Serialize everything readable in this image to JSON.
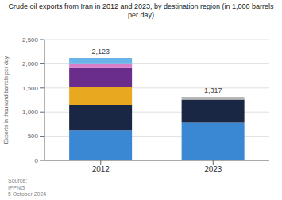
{
  "chart_data": {
    "type": "bar",
    "stacked": true,
    "title": "Crude oil exports from Iran in 2012 and 2023, by destination region (in 1,000 barrels\nper day)",
    "categories": [
      "2012",
      "2023"
    ],
    "series": [
      {
        "colors": [
          "#3a87d4",
          "#3a87d4"
        ],
        "values": [
          620,
          780
        ]
      },
      {
        "colors": [
          "#1a2744",
          "#1a2744"
        ],
        "values": [
          530,
          480
        ]
      },
      {
        "colors": [
          "#e8a820",
          "#b8b8b8"
        ],
        "values": [
          370,
          57
        ]
      },
      {
        "color": "#6b2d8b",
        "values": [
          390,
          null
        ]
      },
      {
        "color": "#d87fcb",
        "values": [
          85,
          null
        ]
      },
      {
        "color": "#6ab4e8",
        "values": [
          128,
          null
        ]
      }
    ],
    "totals": [
      2123,
      1317
    ],
    "total_labels": [
      "2,123",
      "1,317"
    ],
    "ylabel": "Exports in thousand barrels per day",
    "ylim": [
      0,
      2500
    ],
    "yticks": [
      0,
      500,
      {
        "value": 1000,
        "label": "1,000"
      },
      {
        "value": 1500,
        "label": "1,500"
      },
      {
        "value": 2000,
        "label": "2,000"
      },
      {
        "value": 2500,
        "label": "2,500"
      }
    ],
    "grid": true,
    "annotations": [
      "Source:\nIFPNG\n5 October 2024"
    ]
  }
}
